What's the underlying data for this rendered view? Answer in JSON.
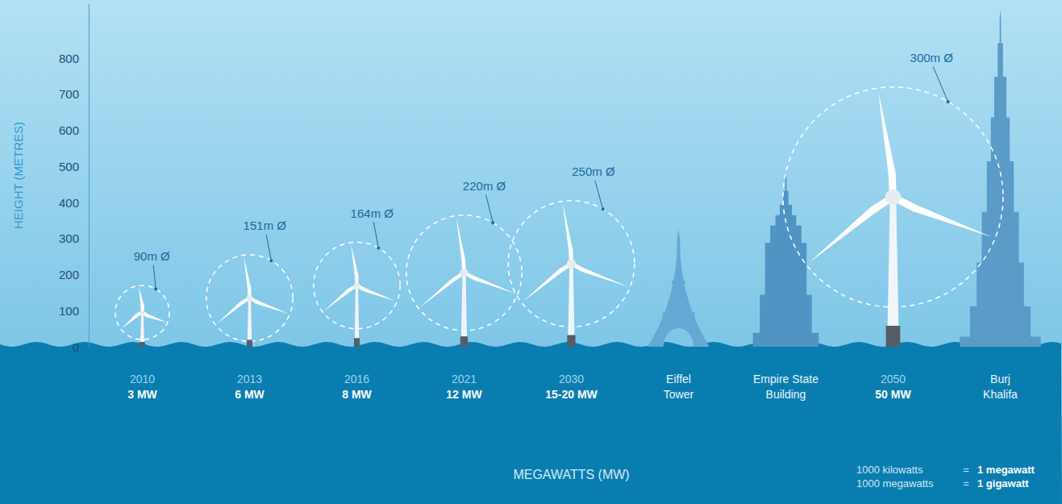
{
  "chart_data": {
    "type": "pictorial",
    "y_label": "HEIGHT (METRES)",
    "x_label": "MEGAWATTS (MW)",
    "categories": [
      "2010",
      "2013",
      "2016",
      "2021",
      "2030",
      "Eiffel Tower",
      "Empire State Building",
      "2050",
      "Burj Khalifa"
    ],
    "capacity_labels": [
      "3 MW",
      "6 MW",
      "8 MW",
      "12 MW",
      "15-20 MW",
      null,
      null,
      "50 MW",
      null
    ],
    "series": [
      {
        "type": "turbine",
        "color": "#ffffff",
        "values": [
          170,
          255,
          290,
          365,
          405,
          null,
          null,
          720,
          null
        ],
        "hub_heights": [
          95,
          135,
          170,
          205,
          230,
          null,
          null,
          415,
          null
        ],
        "rotor_labels": [
          "90m Ø",
          "151m Ø",
          "164m Ø",
          "220m Ø",
          "250m Ø",
          null,
          null,
          "300m Ø",
          null
        ]
      },
      {
        "type": "landmark",
        "marker": "lattice",
        "color": "#63a9d4",
        "values": [
          null,
          null,
          null,
          null,
          null,
          325,
          null,
          null,
          null
        ]
      },
      {
        "type": "landmark",
        "marker": "setback",
        "color": "#4f94c3",
        "values": [
          null,
          null,
          null,
          null,
          null,
          null,
          480,
          null,
          null
        ]
      },
      {
        "type": "landmark",
        "marker": "spire",
        "color": "#5a9bc8",
        "values": [
          null,
          null,
          null,
          null,
          null,
          null,
          null,
          null,
          935
        ]
      }
    ],
    "ylim": [
      0,
      950
    ],
    "yticks": [
      0,
      100,
      200,
      300,
      400,
      500,
      600,
      700,
      800
    ],
    "grid": false,
    "notes": [
      [
        "1000 kilowatts",
        "=",
        "1 megawatt"
      ],
      [
        "1000 megawatts",
        "=",
        "1 gigawatt"
      ]
    ]
  }
}
